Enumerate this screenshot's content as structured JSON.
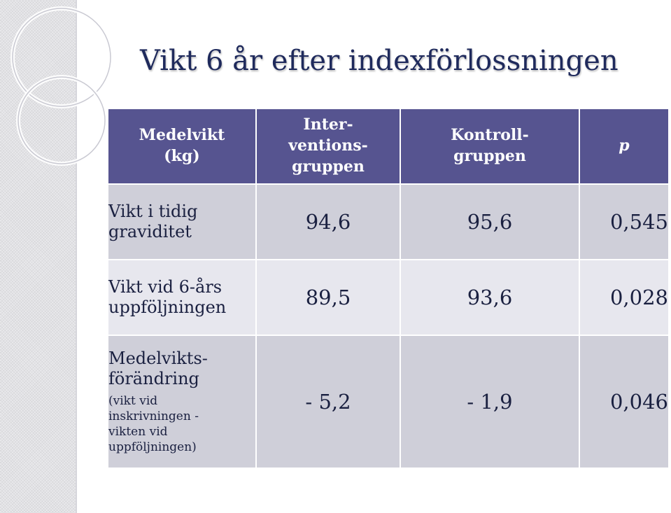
{
  "title": "Vikt 6 år efter indexförlossningen",
  "table": {
    "headers": {
      "c1": [
        "Medelvikt",
        "(kg)"
      ],
      "c2": [
        "Inter-",
        "ventions-",
        "gruppen"
      ],
      "c3": [
        "Kontroll-",
        "gruppen"
      ],
      "c4": "p"
    },
    "rows": [
      {
        "label": [
          "Vikt i tidig",
          "graviditet"
        ],
        "intervention": "94,6",
        "kontroll": "95,6",
        "p": "0,545"
      },
      {
        "label": [
          "Vikt vid 6-års",
          "uppföljningen"
        ],
        "intervention": "89,5",
        "kontroll": "93,6",
        "p": "0,028"
      },
      {
        "label": [
          "Medelvikts-",
          "förändring"
        ],
        "note": [
          "(vikt vid",
          "inskrivningen -",
          "vikten vid",
          "uppföljningen)"
        ],
        "intervention": "- 5,2",
        "kontroll": "- 1,9",
        "p": "0,046"
      }
    ]
  },
  "colors": {
    "header_bg": "#565490",
    "row_dark": "#cfcfd9",
    "row_light": "#e7e7ee",
    "title": "#1f2a5c"
  }
}
